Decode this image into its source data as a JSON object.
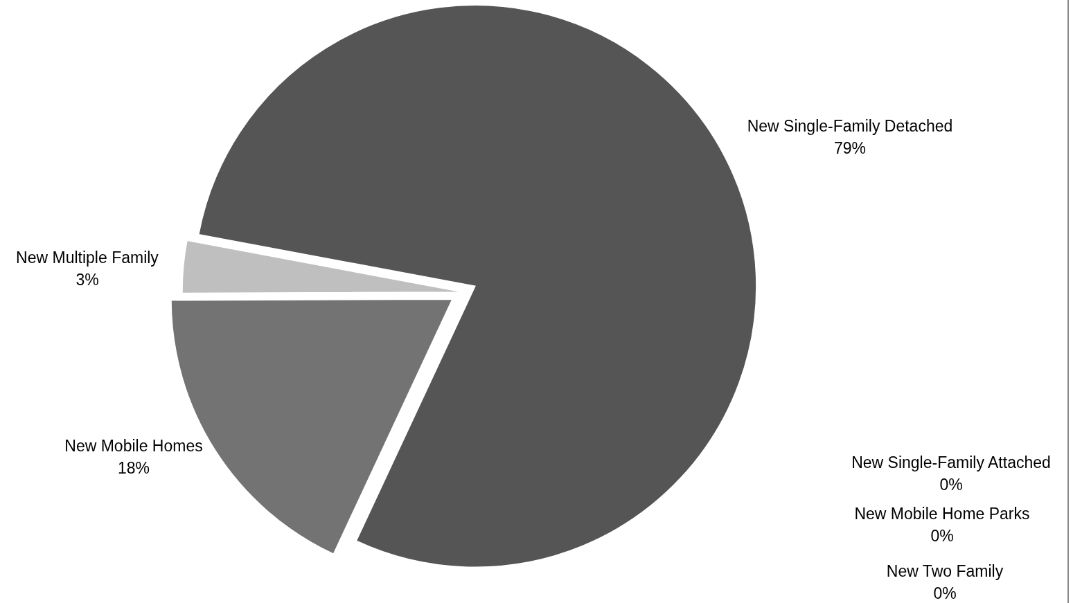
{
  "chart_data": {
    "type": "pie",
    "categories": [
      "New Single-Family Detached",
      "New Single-Family Attached",
      "New Mobile Home Parks",
      "New Two Family",
      "New Mobile Homes",
      "New Multiple Family"
    ],
    "values": [
      79,
      0,
      0,
      0,
      18,
      3
    ],
    "colors": [
      "#555555",
      "#a5a5a5",
      "#8c8c8c",
      "#d9d9d9",
      "#737373",
      "#bfbfbf"
    ],
    "value_labels": [
      "79%",
      "0%",
      "0%",
      "0%",
      "18%",
      "3%"
    ],
    "legend": false
  }
}
